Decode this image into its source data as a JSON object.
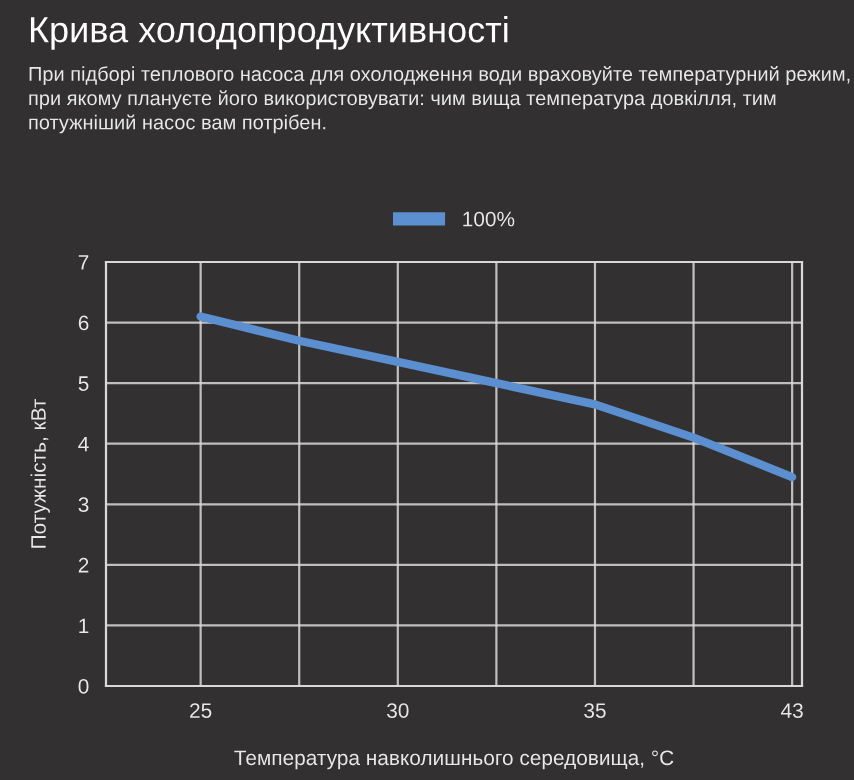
{
  "chart_data": {
    "type": "line",
    "title": "Крива холодопродуктивності",
    "subtitle": "При підборі теплового насоса для охолодження води враховуйте температурний режим, при якому плануєте його використовувати: чим вища температура довкілля, тим потужніший насос вам потрібен.",
    "xlabel": "Температура навколишнього середовища, °C",
    "ylabel": "Потужність, кВт",
    "categories": [
      "25",
      null,
      "30",
      null,
      "35",
      null,
      "43"
    ],
    "series": [
      {
        "name": "100%",
        "color": "#5b8fd0",
        "values": [
          6.1,
          5.7,
          5.35,
          5.0,
          4.65,
          4.1,
          3.45
        ]
      }
    ],
    "ylim": [
      0,
      7
    ],
    "yticks": [
      0,
      1,
      2,
      3,
      4,
      5,
      6,
      7
    ],
    "grid": true,
    "legend": "top",
    "marker": "none",
    "line_style": "solid"
  }
}
